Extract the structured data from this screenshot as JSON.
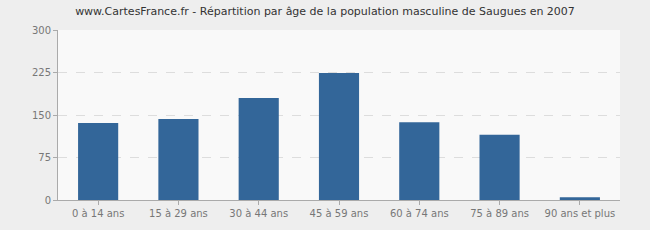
{
  "chart_data": {
    "type": "bar",
    "title": "www.CartesFrance.fr - Répartition par âge de la population masculine de Saugues en 2007",
    "categories": [
      "0 à 14 ans",
      "15 à 29 ans",
      "30 à 44 ans",
      "45 à 59 ans",
      "60 à 74 ans",
      "75 à 89 ans",
      "90 ans et plus"
    ],
    "values": [
      136,
      143,
      180,
      224,
      137,
      115,
      5
    ],
    "color": "#336699",
    "ylim": [
      0,
      300
    ],
    "yticks": [
      0,
      75,
      150,
      225,
      300
    ],
    "grid": true
  }
}
